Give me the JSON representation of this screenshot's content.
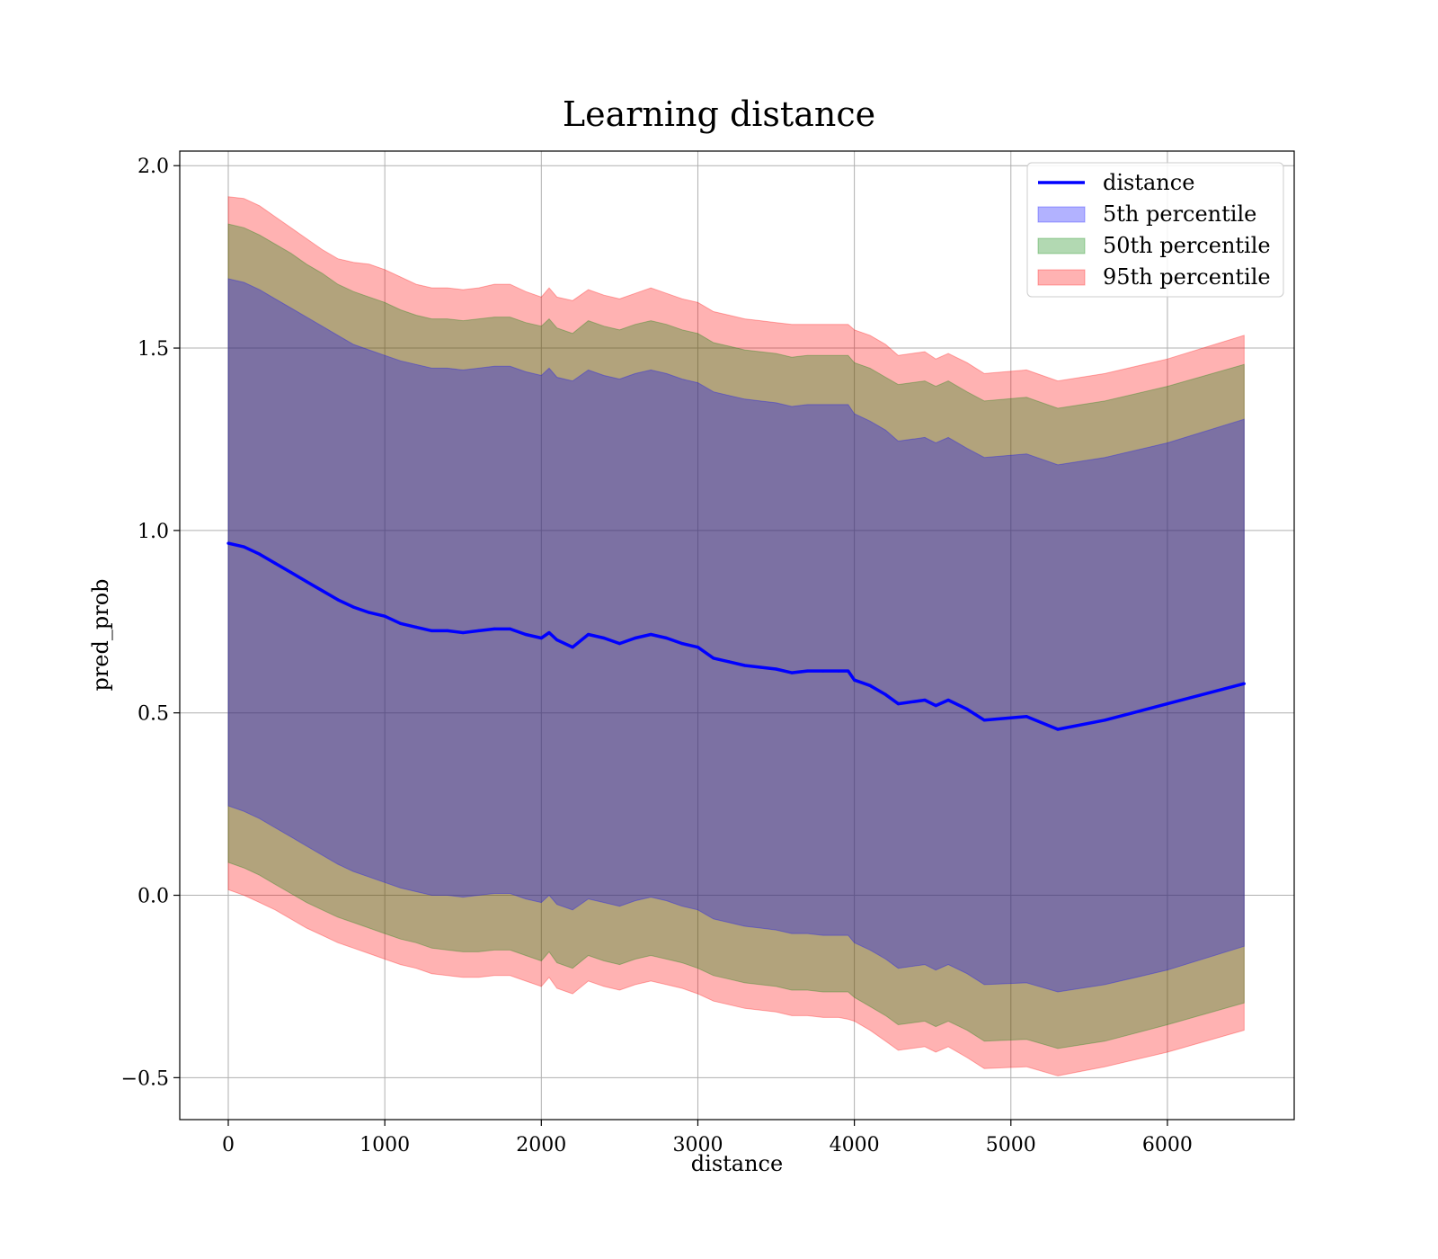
{
  "chart_data": {
    "type": "line",
    "title": "Learning distance",
    "xlabel": "distance",
    "ylabel": "pred_prob",
    "xlim": [
      -310,
      6810
    ],
    "ylim": [
      -0.615,
      2.04
    ],
    "xticks": [
      0,
      1000,
      2000,
      3000,
      4000,
      5000,
      6000
    ],
    "yticks": [
      -0.5,
      0.0,
      0.5,
      1.0,
      1.5,
      2.0
    ],
    "xtick_labels": [
      "0",
      "1000",
      "2000",
      "3000",
      "4000",
      "5000",
      "6000"
    ],
    "ytick_labels": [
      "−0.5",
      "0.0",
      "0.5",
      "1.0",
      "1.5",
      "2.0"
    ],
    "grid": true,
    "legend_position": "top-right",
    "legend": [
      {
        "label": "distance",
        "kind": "line",
        "color": "#0000ff"
      },
      {
        "label": "5th percentile",
        "kind": "patch",
        "color": "#0000ff"
      },
      {
        "label": "50th percentile",
        "kind": "patch",
        "color": "#008000"
      },
      {
        "label": "95th percentile",
        "kind": "patch",
        "color": "#ff0000"
      }
    ],
    "x": [
      0,
      100,
      200,
      300,
      400,
      500,
      600,
      700,
      800,
      900,
      1000,
      1100,
      1200,
      1300,
      1400,
      1500,
      1600,
      1700,
      1800,
      1900,
      2000,
      2050,
      2100,
      2200,
      2300,
      2400,
      2500,
      2600,
      2700,
      2800,
      2900,
      3000,
      3100,
      3200,
      3300,
      3400,
      3500,
      3600,
      3700,
      3800,
      3900,
      3960,
      4000,
      4100,
      4200,
      4280,
      4450,
      4520,
      4600,
      4720,
      4830,
      5100,
      5300,
      5600,
      6000,
      6490
    ],
    "series": [
      {
        "name": "distance",
        "color": "#0000ff",
        "values": [
          0.965,
          0.955,
          0.935,
          0.91,
          0.885,
          0.86,
          0.835,
          0.81,
          0.79,
          0.775,
          0.765,
          0.745,
          0.735,
          0.725,
          0.725,
          0.72,
          0.725,
          0.73,
          0.73,
          0.715,
          0.705,
          0.72,
          0.7,
          0.68,
          0.715,
          0.705,
          0.69,
          0.705,
          0.715,
          0.705,
          0.69,
          0.68,
          0.65,
          0.64,
          0.63,
          0.625,
          0.62,
          0.61,
          0.615,
          0.615,
          0.615,
          0.615,
          0.59,
          0.575,
          0.55,
          0.525,
          0.535,
          0.52,
          0.535,
          0.51,
          0.48,
          0.49,
          0.455,
          0.48,
          0.525,
          0.58
        ]
      }
    ],
    "bands": [
      {
        "name": "95th percentile",
        "color": "#ff0000",
        "upper": [
          1.915,
          1.91,
          1.89,
          1.86,
          1.83,
          1.8,
          1.77,
          1.745,
          1.735,
          1.73,
          1.715,
          1.695,
          1.675,
          1.665,
          1.665,
          1.66,
          1.665,
          1.675,
          1.675,
          1.655,
          1.64,
          1.665,
          1.64,
          1.63,
          1.66,
          1.645,
          1.635,
          1.65,
          1.665,
          1.65,
          1.635,
          1.625,
          1.6,
          1.59,
          1.58,
          1.575,
          1.57,
          1.565,
          1.565,
          1.565,
          1.565,
          1.565,
          1.55,
          1.535,
          1.51,
          1.48,
          1.49,
          1.47,
          1.485,
          1.46,
          1.43,
          1.44,
          1.41,
          1.43,
          1.47,
          1.535
        ],
        "lower": [
          0.015,
          0.0,
          -0.02,
          -0.04,
          -0.065,
          -0.09,
          -0.11,
          -0.13,
          -0.145,
          -0.16,
          -0.175,
          -0.19,
          -0.2,
          -0.215,
          -0.22,
          -0.225,
          -0.225,
          -0.22,
          -0.22,
          -0.235,
          -0.25,
          -0.225,
          -0.255,
          -0.27,
          -0.235,
          -0.25,
          -0.26,
          -0.245,
          -0.235,
          -0.245,
          -0.255,
          -0.27,
          -0.29,
          -0.3,
          -0.31,
          -0.315,
          -0.32,
          -0.33,
          -0.33,
          -0.335,
          -0.335,
          -0.34,
          -0.345,
          -0.37,
          -0.4,
          -0.425,
          -0.415,
          -0.43,
          -0.415,
          -0.445,
          -0.475,
          -0.47,
          -0.495,
          -0.47,
          -0.43,
          -0.37
        ]
      },
      {
        "name": "50th percentile",
        "color": "#008000",
        "upper": [
          1.84,
          1.83,
          1.81,
          1.785,
          1.76,
          1.73,
          1.705,
          1.675,
          1.655,
          1.64,
          1.625,
          1.605,
          1.59,
          1.58,
          1.58,
          1.575,
          1.58,
          1.585,
          1.585,
          1.57,
          1.56,
          1.58,
          1.555,
          1.54,
          1.575,
          1.56,
          1.55,
          1.565,
          1.575,
          1.565,
          1.55,
          1.54,
          1.515,
          1.505,
          1.495,
          1.49,
          1.485,
          1.475,
          1.48,
          1.48,
          1.48,
          1.48,
          1.46,
          1.445,
          1.42,
          1.4,
          1.41,
          1.395,
          1.41,
          1.38,
          1.355,
          1.365,
          1.335,
          1.355,
          1.395,
          1.455
        ],
        "lower": [
          0.09,
          0.075,
          0.055,
          0.03,
          0.005,
          -0.02,
          -0.04,
          -0.06,
          -0.075,
          -0.09,
          -0.105,
          -0.12,
          -0.13,
          -0.145,
          -0.15,
          -0.155,
          -0.155,
          -0.15,
          -0.15,
          -0.165,
          -0.18,
          -0.155,
          -0.185,
          -0.2,
          -0.165,
          -0.18,
          -0.19,
          -0.175,
          -0.165,
          -0.175,
          -0.185,
          -0.2,
          -0.22,
          -0.23,
          -0.24,
          -0.245,
          -0.25,
          -0.26,
          -0.26,
          -0.265,
          -0.265,
          -0.265,
          -0.28,
          -0.305,
          -0.33,
          -0.355,
          -0.345,
          -0.36,
          -0.345,
          -0.37,
          -0.4,
          -0.395,
          -0.42,
          -0.4,
          -0.355,
          -0.295
        ]
      },
      {
        "name": "5th percentile",
        "color": "#0000ff",
        "upper": [
          1.69,
          1.68,
          1.66,
          1.635,
          1.61,
          1.585,
          1.56,
          1.535,
          1.51,
          1.495,
          1.48,
          1.465,
          1.455,
          1.445,
          1.445,
          1.44,
          1.445,
          1.45,
          1.45,
          1.435,
          1.425,
          1.445,
          1.42,
          1.41,
          1.44,
          1.425,
          1.415,
          1.43,
          1.44,
          1.43,
          1.415,
          1.405,
          1.38,
          1.37,
          1.36,
          1.355,
          1.35,
          1.34,
          1.345,
          1.345,
          1.345,
          1.345,
          1.32,
          1.3,
          1.275,
          1.245,
          1.255,
          1.24,
          1.255,
          1.225,
          1.2,
          1.21,
          1.18,
          1.2,
          1.24,
          1.305
        ],
        "lower": [
          0.245,
          0.23,
          0.21,
          0.185,
          0.16,
          0.135,
          0.11,
          0.085,
          0.065,
          0.05,
          0.035,
          0.02,
          0.01,
          0.0,
          0.0,
          -0.005,
          0.0,
          0.005,
          0.005,
          -0.01,
          -0.02,
          0.0,
          -0.025,
          -0.04,
          -0.01,
          -0.02,
          -0.03,
          -0.015,
          -0.005,
          -0.015,
          -0.03,
          -0.04,
          -0.065,
          -0.075,
          -0.085,
          -0.09,
          -0.095,
          -0.105,
          -0.105,
          -0.11,
          -0.11,
          -0.11,
          -0.13,
          -0.15,
          -0.175,
          -0.2,
          -0.19,
          -0.205,
          -0.19,
          -0.215,
          -0.245,
          -0.24,
          -0.265,
          -0.245,
          -0.205,
          -0.14
        ]
      }
    ]
  }
}
